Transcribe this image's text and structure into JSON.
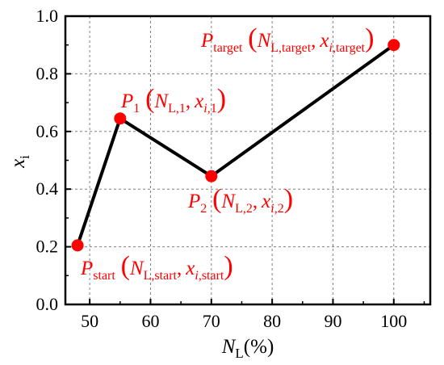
{
  "chart_data": {
    "type": "line",
    "title": "",
    "x_axis": {
      "label_main": "N",
      "label_sub": "L",
      "label_suffix": "(%)",
      "range": [
        46,
        106
      ],
      "ticks": [
        50,
        60,
        70,
        80,
        90,
        100
      ]
    },
    "y_axis": {
      "label_main": "x",
      "label_sub": "i",
      "range": [
        0.0,
        1.0
      ],
      "ticks": [
        "0.0",
        "0.2",
        "0.4",
        "0.6",
        "0.8",
        "1.0"
      ]
    },
    "grid": true,
    "grid_style": "dashed",
    "series": [
      {
        "line_color": "#000000",
        "marker_color": "#ff0000",
        "points": [
          {
            "x": 48,
            "y": 0.205
          },
          {
            "x": 55,
            "y": 0.645
          },
          {
            "x": 70,
            "y": 0.445
          },
          {
            "x": 100,
            "y": 0.9
          }
        ]
      }
    ],
    "annotations": [
      {
        "P": "P",
        "P_sub": "start",
        "N": "N",
        "N_sub": "L,start",
        "x": "x",
        "x_sub_i": "i",
        "x_sub_rest": ",start"
      },
      {
        "P": "P",
        "P_sub": "1",
        "N": "N",
        "N_sub": "L,1",
        "x": "x",
        "x_sub_i": "i",
        "x_sub_rest": ",1"
      },
      {
        "P": "P",
        "P_sub": "2",
        "N": "N",
        "N_sub": "L,2",
        "x": "x",
        "x_sub_i": "i",
        "x_sub_rest": ",2"
      },
      {
        "P": "P",
        "P_sub": "target",
        "N": "N",
        "N_sub": "L,target",
        "x": "x",
        "x_sub_i": "i",
        "x_sub_rest": ",target"
      }
    ]
  }
}
